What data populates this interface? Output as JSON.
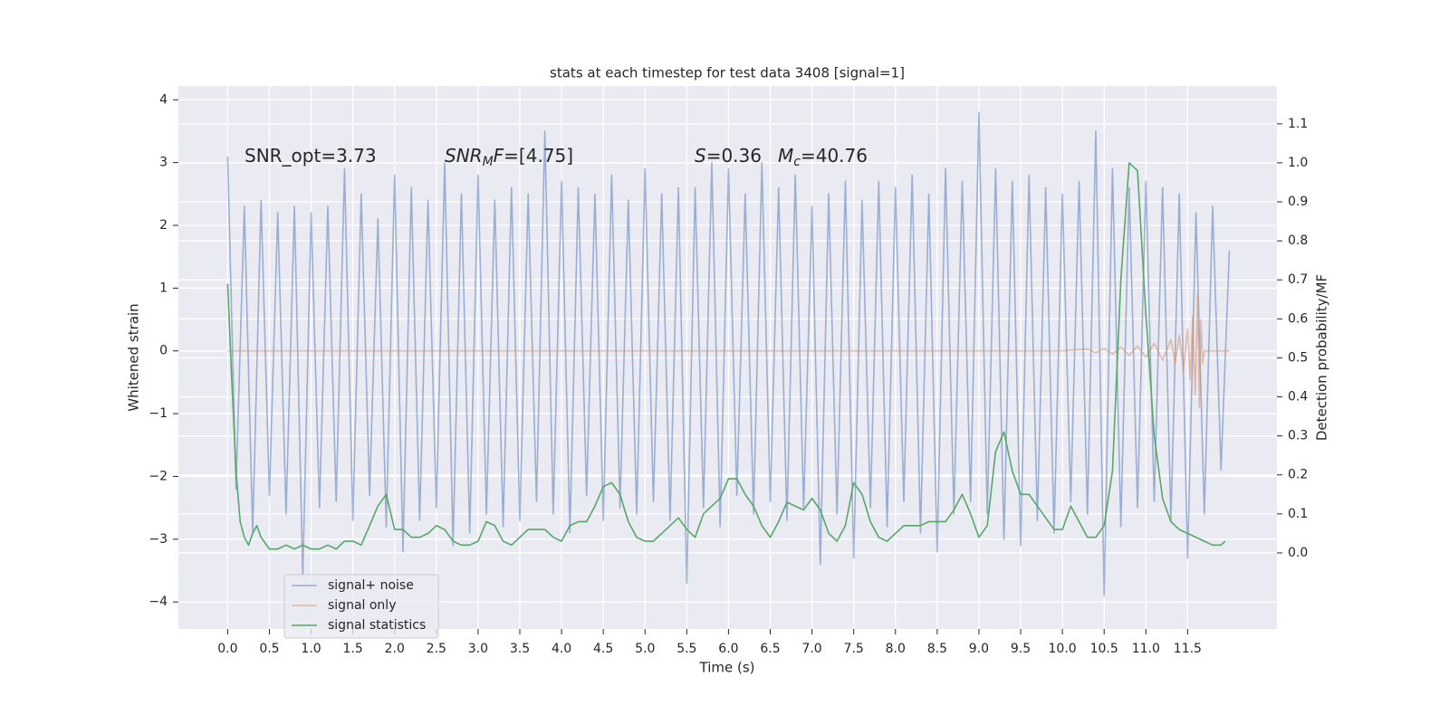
{
  "chart_data": {
    "type": "line",
    "title": "stats at each timestep for test data 3408 [signal=1]",
    "xlabel": "Time (s)",
    "ylabel": "Whitened strain",
    "y2label": "Detection probability/MF",
    "xlim": [
      -0.59,
      12.57
    ],
    "ylim": [
      -4.43,
      4.22
    ],
    "y2lim": [
      -0.195,
      1.197
    ],
    "xticks": [
      {
        "value": 0,
        "label": "0.0"
      },
      0.5,
      {
        "value": 1,
        "label": "1.0"
      },
      1.5,
      {
        "value": 2,
        "label": "2.0"
      },
      2.5,
      {
        "value": 3,
        "label": "3.0"
      },
      3.5,
      {
        "value": 4,
        "label": "4.0"
      },
      4.5,
      {
        "value": 5,
        "label": "5.0"
      },
      5.5,
      {
        "value": 6,
        "label": "6.0"
      },
      6.5,
      {
        "value": 7,
        "label": "7.0"
      },
      7.5,
      {
        "value": 8,
        "label": "8.0"
      },
      8.5,
      {
        "value": 9,
        "label": "9.0"
      },
      9.5,
      {
        "value": 10,
        "label": "10.0"
      },
      10.5,
      {
        "value": 11,
        "label": "11.0"
      },
      11.5
    ],
    "yticks": [
      {
        "value": -4,
        "label": "−4"
      },
      {
        "value": -3,
        "label": "−3"
      },
      {
        "value": -2,
        "label": "−2"
      },
      {
        "value": -1,
        "label": "−1"
      },
      0,
      1,
      2,
      3,
      4
    ],
    "y2ticks": [
      {
        "value": 0,
        "label": "0.0"
      },
      0.1,
      0.2,
      0.3,
      0.4,
      0.5,
      0.6,
      0.7,
      0.8,
      0.9,
      {
        "value": 1,
        "label": "1.0"
      },
      1.1
    ],
    "grid": true,
    "legend": "lower left",
    "annotations": [
      {
        "parts": [
          {
            "text": "SNR_opt=3.73"
          }
        ]
      },
      {
        "parts": [
          {
            "text": "SNR",
            "style": "italic"
          },
          {
            "text": "M",
            "style": "italic-sub"
          },
          {
            "text": "F",
            "style": "italic"
          },
          {
            "text": "=[4.75]"
          }
        ]
      },
      {
        "parts": [
          {
            "text": "S",
            "style": "italic"
          },
          {
            "text": "=0.36"
          }
        ]
      },
      {
        "parts": [
          {
            "text": "M",
            "style": "italic"
          },
          {
            "text": "c",
            "style": "italic-sub"
          },
          {
            "text": "=40.76"
          }
        ]
      }
    ],
    "series": [
      {
        "name": "signal+ noise",
        "color": "#4c72b0",
        "opacity": 0.5,
        "x": [
          0,
          0.1,
          0.2,
          0.3,
          0.4,
          0.5,
          0.6,
          0.7,
          0.8,
          0.9,
          1,
          1.1,
          1.2,
          1.3,
          1.4,
          1.5,
          1.6,
          1.7,
          1.8,
          1.9,
          2,
          2.1,
          2.2,
          2.3,
          2.4,
          2.5,
          2.6,
          2.7,
          2.8,
          2.9,
          3,
          3.1,
          3.2,
          3.3,
          3.4,
          3.5,
          3.6,
          3.7,
          3.8,
          3.9,
          4,
          4.1,
          4.2,
          4.3,
          4.4,
          4.5,
          4.6,
          4.7,
          4.8,
          4.9,
          5,
          5.1,
          5.2,
          5.3,
          5.4,
          5.5,
          5.6,
          5.7,
          5.8,
          5.9,
          6,
          6.1,
          6.2,
          6.3,
          6.4,
          6.5,
          6.6,
          6.7,
          6.8,
          6.9,
          7,
          7.1,
          7.2,
          7.3,
          7.4,
          7.5,
          7.6,
          7.7,
          7.8,
          7.9,
          8,
          8.1,
          8.2,
          8.3,
          8.4,
          8.5,
          8.6,
          8.7,
          8.8,
          8.9,
          9,
          9.1,
          9.2,
          9.3,
          9.4,
          9.5,
          9.6,
          9.7,
          9.8,
          9.9,
          10,
          10.1,
          10.2,
          10.3,
          10.4,
          10.5,
          10.6,
          10.7,
          10.8,
          10.9,
          11,
          11.1,
          11.2,
          11.3,
          11.4,
          11.5,
          11.6,
          11.7,
          11.8,
          11.9,
          12
        ],
        "values": [
          3.1,
          -2.2,
          2.3,
          -2.9,
          2.4,
          -2.3,
          2.2,
          -2.6,
          2.3,
          -3.6,
          2.2,
          -2.5,
          2.3,
          -2.4,
          2.9,
          -2.7,
          2.5,
          -2.3,
          2.1,
          -2.8,
          2.8,
          -3.2,
          2.6,
          -2.7,
          2.4,
          -2.5,
          3.0,
          -3.1,
          2.5,
          -2.9,
          2.8,
          -2.6,
          2.4,
          -2.8,
          2.6,
          -2.7,
          2.5,
          -2.4,
          3.5,
          -2.6,
          2.7,
          -2.9,
          2.6,
          -2.3,
          2.5,
          -2.7,
          2.8,
          -2.5,
          2.4,
          -2.6,
          2.9,
          -2.4,
          2.5,
          -2.7,
          2.6,
          -3.7,
          2.6,
          -2.5,
          3.0,
          -2.8,
          2.9,
          -2.3,
          2.5,
          -2.6,
          3.0,
          -2.4,
          2.6,
          -2.7,
          2.8,
          -2.5,
          2.3,
          -3.4,
          2.5,
          -2.6,
          2.7,
          -3.3,
          2.4,
          -2.5,
          2.7,
          -2.8,
          2.6,
          -2.4,
          2.8,
          -2.9,
          2.5,
          -3.2,
          2.9,
          -2.6,
          2.7,
          -2.4,
          3.8,
          -2.6,
          2.9,
          -3.0,
          2.7,
          -3.1,
          2.8,
          -2.7,
          2.6,
          -2.9,
          2.5,
          -2.4,
          2.7,
          -2.6,
          3.5,
          -3.9,
          2.9,
          -2.8,
          2.6,
          -2.5,
          2.7,
          -2.4,
          2.6,
          -2.7,
          2.5,
          -3.3,
          2.2,
          -2.6,
          2.3,
          -1.9,
          1.6
        ]
      },
      {
        "name": "signal only",
        "color": "#dd8452",
        "opacity": 0.5,
        "x": [
          0,
          10,
          10.3,
          10.4,
          10.5,
          10.6,
          10.7,
          10.8,
          10.9,
          11,
          11.1,
          11.2,
          11.3,
          11.35,
          11.4,
          11.45,
          11.5,
          11.53,
          11.56,
          11.59,
          11.62,
          11.64,
          11.66,
          11.68,
          11.7,
          12
        ],
        "values": [
          0,
          0,
          0.03,
          -0.03,
          0.04,
          -0.05,
          0.06,
          -0.07,
          0.08,
          -0.1,
          0.12,
          -0.15,
          0.18,
          -0.2,
          0.25,
          -0.3,
          0.35,
          -0.45,
          0.55,
          -0.7,
          0.9,
          -0.9,
          0.5,
          -0.2,
          0,
          0
        ]
      },
      {
        "name": "signal statistics",
        "color": "#55a868",
        "opacity": 1,
        "axis": "y2",
        "x": [
          0,
          0.05,
          0.1,
          0.15,
          0.2,
          0.25,
          0.3,
          0.35,
          0.4,
          0.5,
          0.6,
          0.7,
          0.8,
          0.9,
          1,
          1.1,
          1.2,
          1.3,
          1.4,
          1.5,
          1.6,
          1.7,
          1.8,
          1.9,
          2,
          2.1,
          2.2,
          2.3,
          2.4,
          2.5,
          2.6,
          2.7,
          2.8,
          2.9,
          3,
          3.1,
          3.2,
          3.3,
          3.4,
          3.5,
          3.6,
          3.7,
          3.8,
          3.9,
          4,
          4.1,
          4.2,
          4.3,
          4.4,
          4.5,
          4.6,
          4.7,
          4.8,
          4.9,
          5,
          5.1,
          5.2,
          5.3,
          5.4,
          5.5,
          5.6,
          5.7,
          5.8,
          5.9,
          6,
          6.1,
          6.2,
          6.3,
          6.4,
          6.5,
          6.6,
          6.7,
          6.8,
          6.9,
          7,
          7.1,
          7.2,
          7.3,
          7.4,
          7.5,
          7.6,
          7.7,
          7.8,
          7.9,
          8,
          8.1,
          8.2,
          8.3,
          8.4,
          8.5,
          8.6,
          8.7,
          8.8,
          8.9,
          9,
          9.1,
          9.2,
          9.3,
          9.4,
          9.5,
          9.6,
          9.7,
          9.8,
          9.9,
          10,
          10.1,
          10.2,
          10.3,
          10.4,
          10.5,
          10.6,
          10.7,
          10.8,
          10.9,
          11,
          11.1,
          11.2,
          11.3,
          11.4,
          11.5,
          11.6,
          11.7,
          11.8,
          11.9,
          11.95
        ],
        "values": [
          0.69,
          0.44,
          0.21,
          0.08,
          0.04,
          0.02,
          0.05,
          0.07,
          0.04,
          0.01,
          0.01,
          0.02,
          0.01,
          0.02,
          0.01,
          0.01,
          0.02,
          0.01,
          0.03,
          0.03,
          0.02,
          0.07,
          0.12,
          0.15,
          0.06,
          0.06,
          0.04,
          0.04,
          0.05,
          0.07,
          0.06,
          0.03,
          0.02,
          0.02,
          0.03,
          0.08,
          0.07,
          0.03,
          0.02,
          0.04,
          0.06,
          0.06,
          0.06,
          0.04,
          0.03,
          0.07,
          0.08,
          0.08,
          0.12,
          0.17,
          0.18,
          0.15,
          0.08,
          0.04,
          0.03,
          0.03,
          0.05,
          0.07,
          0.09,
          0.06,
          0.04,
          0.1,
          0.12,
          0.14,
          0.19,
          0.19,
          0.15,
          0.12,
          0.07,
          0.04,
          0.08,
          0.13,
          0.12,
          0.11,
          0.14,
          0.11,
          0.05,
          0.03,
          0.07,
          0.18,
          0.15,
          0.08,
          0.04,
          0.03,
          0.05,
          0.07,
          0.07,
          0.07,
          0.08,
          0.08,
          0.08,
          0.11,
          0.15,
          0.1,
          0.04,
          0.07,
          0.26,
          0.31,
          0.21,
          0.15,
          0.15,
          0.12,
          0.09,
          0.06,
          0.06,
          0.12,
          0.08,
          0.04,
          0.04,
          0.07,
          0.21,
          0.7,
          1.0,
          0.98,
          0.61,
          0.3,
          0.14,
          0.08,
          0.06,
          0.05,
          0.04,
          0.03,
          0.02,
          0.02,
          0.03
        ]
      }
    ]
  }
}
